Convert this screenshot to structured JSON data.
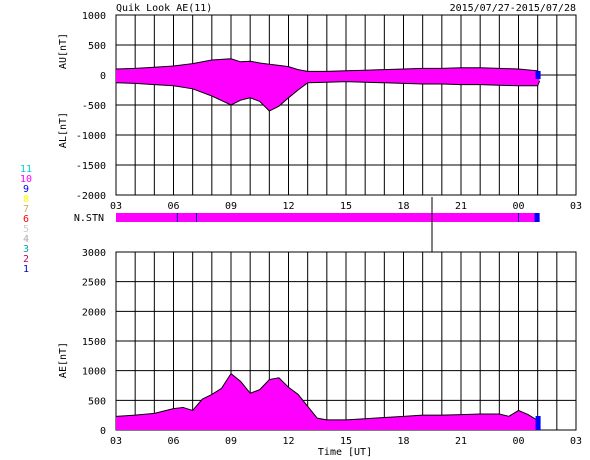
{
  "header": {
    "title": "Quik Look AE(11)",
    "date_range": "2015/07/27-2015/07/28"
  },
  "colors": {
    "fill": "#ff00ff",
    "end_marker": "#0000ff",
    "trace": "#000000",
    "grid": "#000000"
  },
  "station_legend": [
    {
      "label": "11",
      "color": "#00cccc"
    },
    {
      "label": "10",
      "color": "#ff00ff"
    },
    {
      "label": "9",
      "color": "#0000ff"
    },
    {
      "label": "8",
      "color": "#ffff00"
    },
    {
      "label": "7",
      "color": "#ccaa66"
    },
    {
      "label": "6",
      "color": "#ff0000"
    },
    {
      "label": "5",
      "color": "#cccccc"
    },
    {
      "label": "4",
      "color": "#aaaaaa"
    },
    {
      "label": "3",
      "color": "#00aaaa"
    },
    {
      "label": "2",
      "color": "#cc0066"
    },
    {
      "label": "1",
      "color": "#0000cc"
    }
  ],
  "chart_data": [
    {
      "type": "area",
      "ylabel_upper": "AU[nT]",
      "ylabel_lower": "AL[nT]",
      "ylim": [
        -2000,
        1000
      ],
      "yticks": [
        1000,
        500,
        0,
        -500,
        -1000,
        -1500,
        -2000
      ],
      "xlim": [
        3,
        27
      ],
      "xtick_labels": [
        "03",
        "06",
        "09",
        "12",
        "15",
        "18",
        "21",
        "00",
        "03"
      ],
      "grid": true,
      "series": [
        {
          "values_x": [
            3,
            4,
            5,
            6,
            7,
            8,
            9,
            9.5,
            10,
            10.5,
            11,
            11.5,
            12,
            12.5,
            13,
            14,
            15,
            16,
            17,
            18,
            19,
            20,
            21,
            22,
            23,
            24,
            25,
            25.1
          ],
          "values_y": [
            100,
            110,
            130,
            150,
            190,
            250,
            270,
            220,
            230,
            200,
            180,
            160,
            140,
            90,
            60,
            60,
            70,
            80,
            90,
            100,
            110,
            110,
            120,
            120,
            110,
            100,
            70,
            30
          ]
        },
        {
          "values_x": [
            3,
            4,
            5,
            6,
            7,
            8,
            9,
            9.5,
            10,
            10.5,
            11,
            11.5,
            12,
            12.5,
            13,
            14,
            15,
            16,
            17,
            18,
            19,
            20,
            21,
            22,
            23,
            24,
            25,
            25.1
          ],
          "values_y": [
            -130,
            -140,
            -160,
            -180,
            -230,
            -350,
            -500,
            -420,
            -380,
            -440,
            -600,
            -520,
            -380,
            -250,
            -130,
            -120,
            -110,
            -120,
            -130,
            -140,
            -150,
            -150,
            -160,
            -160,
            -170,
            -180,
            -180,
            -100
          ]
        }
      ]
    },
    {
      "type": "bar",
      "ylabel": "N.STN",
      "xlim": [
        3,
        27
      ],
      "segment_boundaries_x": [
        6.2,
        7.2,
        24.0
      ]
    },
    {
      "type": "area",
      "ylabel": "AE[nT]",
      "xlabel": "Time [UT]",
      "ylim": [
        0,
        3000
      ],
      "yticks": [
        3000,
        2500,
        2000,
        1500,
        1000,
        500,
        0
      ],
      "xlim": [
        3,
        27
      ],
      "xtick_labels": [
        "03",
        "06",
        "09",
        "12",
        "15",
        "18",
        "21",
        "00",
        "03"
      ],
      "grid": true,
      "series": [
        {
          "values_x": [
            3,
            4,
            5,
            6,
            6.5,
            7,
            7.5,
            8,
            8.5,
            9,
            9.5,
            10,
            10.5,
            11,
            11.5,
            12,
            12.5,
            13,
            13.5,
            14,
            15,
            16,
            17,
            18,
            19,
            20,
            21,
            22,
            23,
            23.5,
            24,
            24.5,
            25,
            25.1
          ],
          "values_y": [
            230,
            250,
            280,
            360,
            380,
            330,
            520,
            600,
            700,
            950,
            820,
            620,
            680,
            850,
            880,
            720,
            600,
            400,
            200,
            170,
            170,
            190,
            210,
            230,
            250,
            250,
            260,
            270,
            270,
            230,
            330,
            260,
            160,
            80
          ]
        }
      ]
    }
  ]
}
